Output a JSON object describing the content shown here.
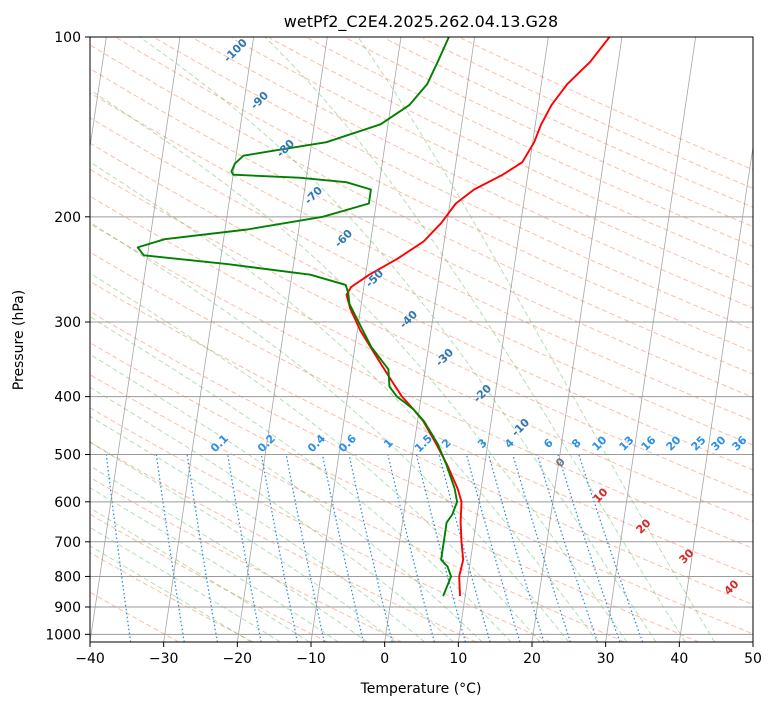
{
  "chart_data": {
    "type": "line",
    "chart_kind": "skew-T log-P diagram",
    "title": "wetPf2_C2E4.2025.262.04.13.G28",
    "xlabel": "Temperature (°C)",
    "ylabel": "Pressure (hPa)",
    "xlim": [
      -40,
      50
    ],
    "ylim": [
      1030,
      100
    ],
    "y_scale": "log",
    "x_ticks": [
      "−40",
      "−30",
      "−20",
      "−10",
      "0",
      "10",
      "20",
      "30",
      "40",
      "50"
    ],
    "y_ticks": [
      "100",
      "200",
      "300",
      "400",
      "500",
      "600",
      "700",
      "800",
      "900",
      "1000"
    ],
    "grid": true,
    "colors": {
      "temperature": "#ff0000",
      "dewpoint": "#008000",
      "dry_adiabats": "#f4a582",
      "moist_adiabats": "#2ca02c",
      "mixing_ratio": "#1e88e5",
      "isotherms": "#808080"
    },
    "series": [
      {
        "color": "#ff0000",
        "points": [
          [
            863,
            9.3
          ],
          [
            800,
            8.8
          ],
          [
            750,
            9.0
          ],
          [
            700,
            8.4
          ],
          [
            650,
            7.9
          ],
          [
            600,
            7.6
          ],
          [
            570,
            6.8
          ],
          [
            520,
            4.9
          ],
          [
            480,
            3.0
          ],
          [
            440,
            0.8
          ],
          [
            420,
            -0.8
          ],
          [
            400,
            -2.6
          ],
          [
            370,
            -4.8
          ],
          [
            340,
            -7.1
          ],
          [
            310,
            -9.6
          ],
          [
            285,
            -11.4
          ],
          [
            270,
            -12.2
          ],
          [
            262,
            -11.7
          ],
          [
            250,
            -9.5
          ],
          [
            235,
            -6.0
          ],
          [
            220,
            -2.8
          ],
          [
            205,
            -0.8
          ],
          [
            190,
            0.8
          ],
          [
            180,
            3.0
          ],
          [
            170,
            6.6
          ],
          [
            162,
            9.0
          ],
          [
            150,
            10.2
          ],
          [
            140,
            10.8
          ],
          [
            130,
            11.8
          ],
          [
            120,
            13.5
          ],
          [
            110,
            16.2
          ],
          [
            100,
            18.3
          ]
        ]
      },
      {
        "color": "#008000",
        "points": [
          [
            863,
            7.0
          ],
          [
            800,
            7.7
          ],
          [
            770,
            7.0
          ],
          [
            750,
            6.0
          ],
          [
            700,
            6.0
          ],
          [
            650,
            6.0
          ],
          [
            630,
            6.6
          ],
          [
            600,
            7.0
          ],
          [
            570,
            6.4
          ],
          [
            520,
            4.8
          ],
          [
            480,
            3.2
          ],
          [
            440,
            0.9
          ],
          [
            420,
            -0.8
          ],
          [
            410,
            -2.0
          ],
          [
            400,
            -3.3
          ],
          [
            385,
            -4.5
          ],
          [
            360,
            -5.0
          ],
          [
            330,
            -7.8
          ],
          [
            300,
            -10.0
          ],
          [
            280,
            -11.6
          ],
          [
            268,
            -12.0
          ],
          [
            260,
            -12.5
          ],
          [
            250,
            -17.5
          ],
          [
            240,
            -29.0
          ],
          [
            232,
            -40.5
          ],
          [
            225,
            -41.5
          ],
          [
            218,
            -38.0
          ],
          [
            210,
            -27.0
          ],
          [
            200,
            -17.0
          ],
          [
            190,
            -11.0
          ],
          [
            180,
            -11.0
          ],
          [
            175,
            -14.5
          ],
          [
            172,
            -21.0
          ],
          [
            170,
            -30.0
          ],
          [
            168,
            -30.3
          ],
          [
            163,
            -30.0
          ],
          [
            158,
            -29.0
          ],
          [
            155,
            -25.0
          ],
          [
            150,
            -18.0
          ],
          [
            140,
            -11.0
          ],
          [
            130,
            -7.5
          ],
          [
            120,
            -5.5
          ],
          [
            110,
            -4.5
          ],
          [
            100,
            -3.5
          ]
        ]
      }
    ],
    "dry_adiabat_labels": [
      "-100",
      "-90",
      "-80",
      "-70",
      "-60",
      "-50",
      "-40",
      "-30",
      "-20",
      "-10"
    ],
    "moist_adiabat_labels": [
      "0",
      "10",
      "20",
      "30",
      "40"
    ],
    "mixing_ratio_labels": [
      "0.1",
      "0.2",
      "0.4",
      "0.6",
      "1",
      "1.5",
      "2",
      "3",
      "4",
      "6",
      "8",
      "10",
      "13",
      "16",
      "20",
      "25",
      "30",
      "36"
    ]
  }
}
